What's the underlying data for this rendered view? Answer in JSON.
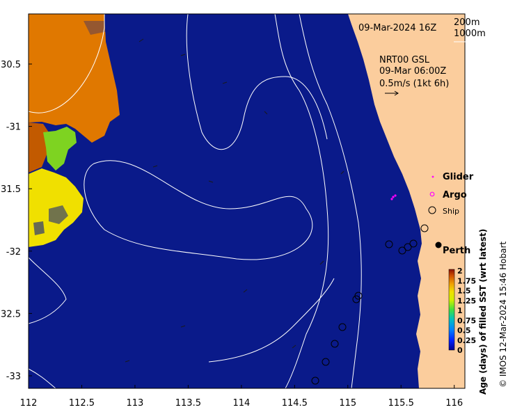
{
  "map": {
    "date_label": "09-Mar-2024 16Z",
    "isobath_labels": [
      "200m",
      "1000m"
    ],
    "current_source": "NRT00 GSL",
    "current_time": "09-Mar 06:00Z",
    "current_scale": "0.5m/s (1kt 6h)",
    "city_label": "Perth",
    "lon_ticks": [
      "112",
      "112.5",
      "113",
      "113.5",
      "114",
      "114.5",
      "115",
      "115.5",
      "116"
    ],
    "lat_ticks": [
      "30.5",
      "-31",
      "31.5",
      "-32",
      "32.5",
      "-33"
    ],
    "legend": [
      {
        "label": "Glider",
        "symbol": "dot",
        "color": "#ff00ff"
      },
      {
        "label": "Argo",
        "symbol": "circle",
        "color": "#ff00ff"
      },
      {
        "label": "Ship",
        "symbol": "circle",
        "color": "#000000"
      }
    ],
    "colorbar": {
      "title": "Age (days) of filled SST (wrt latest)",
      "ticks": [
        "2",
        "1.75",
        "1.5",
        "1.25",
        "1",
        "0.75",
        "0.5",
        "0.25",
        "0"
      ],
      "range": [
        0,
        2
      ]
    },
    "credit": "© IMOS 12-Mar-2024 15:46 Hobart",
    "colors": {
      "ocean": "#0a1a8a",
      "land": "#fbcd9d",
      "age_orange": "#e07800",
      "age_dark_orange": "#c25a00",
      "age_yellow": "#f0e000",
      "age_green": "#7ed321"
    }
  }
}
